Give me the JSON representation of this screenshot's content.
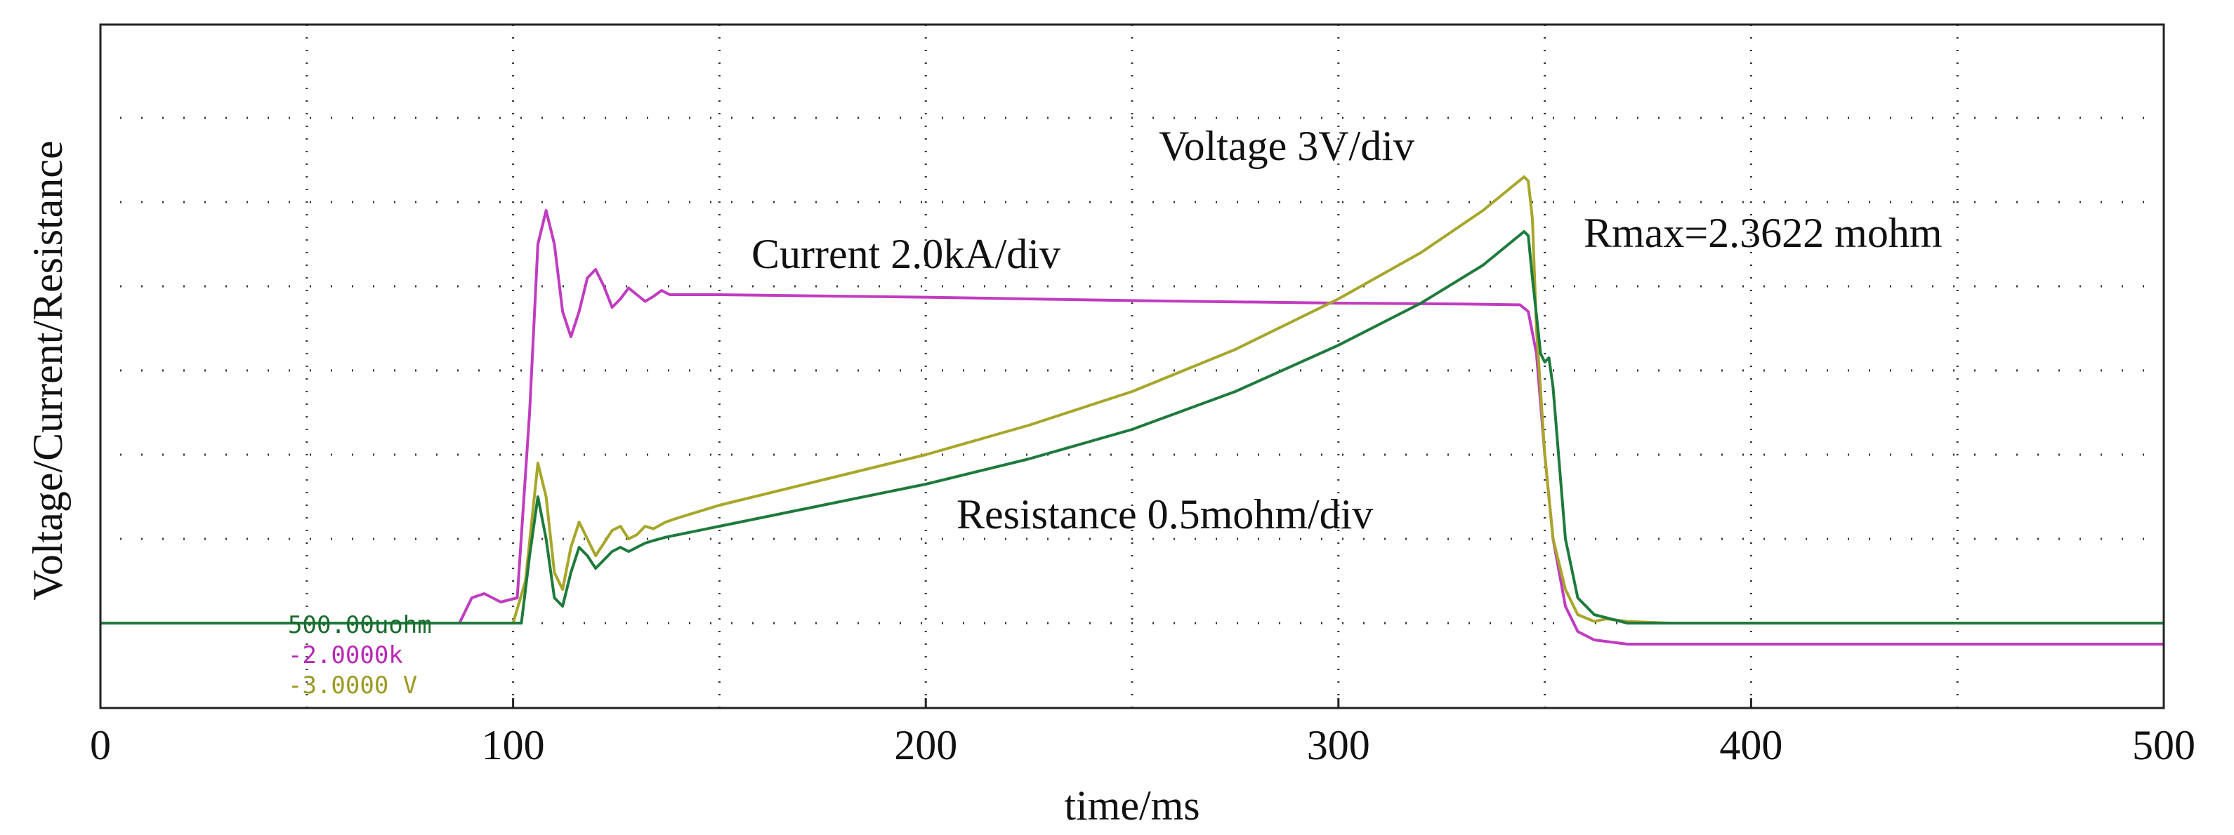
{
  "chart_data": {
    "type": "line",
    "title": "",
    "xlabel": "time/ms",
    "ylabel": "Voltage/Current/Resistance",
    "xlim": [
      0,
      500
    ],
    "ylim": [
      -1,
      7
    ],
    "x_ticks": [
      0,
      100,
      200,
      300,
      400,
      500
    ],
    "x_tick_labels": [
      "0",
      "100",
      "200",
      "300",
      "400",
      "500"
    ],
    "grid": "dotted",
    "annotations": {
      "voltage": "Voltage 3V/div",
      "current": "Current 2.0kA/div",
      "resistance": "Resistance 0.5mohm/div",
      "rmax": "Rmax=2.3622 mohm"
    },
    "channel_labels": [
      {
        "text": "500.00uohm",
        "color": "#1a6b2e"
      },
      {
        "text": "-2.0000k",
        "color": "#b829b8"
      },
      {
        "text": "-3.0000 V",
        "color": "#9c9a22"
      }
    ],
    "series": [
      {
        "name": "Current",
        "unit": "div",
        "color": "#c03cc0",
        "x": [
          0,
          87,
          90,
          93,
          97,
          101,
          104,
          106,
          108,
          110,
          112,
          114,
          116,
          118,
          120,
          122,
          124,
          126,
          128,
          130,
          132,
          134,
          136,
          138,
          140,
          145,
          150,
          200,
          250,
          300,
          330,
          344,
          346,
          348,
          350,
          352,
          355,
          358,
          362,
          370,
          400,
          450,
          500
        ],
        "values": [
          0,
          0,
          0.3,
          0.35,
          0.25,
          0.3,
          2.5,
          4.5,
          4.9,
          4.5,
          3.7,
          3.4,
          3.7,
          4.1,
          4.2,
          4.0,
          3.75,
          3.85,
          3.98,
          3.9,
          3.82,
          3.88,
          3.95,
          3.9,
          3.9,
          3.9,
          3.9,
          3.87,
          3.83,
          3.8,
          3.79,
          3.78,
          3.7,
          3.2,
          2.0,
          1.0,
          0.2,
          -0.1,
          -0.2,
          -0.25,
          -0.25,
          -0.25,
          -0.25
        ]
      },
      {
        "name": "Voltage",
        "unit": "div",
        "color": "#a8a62a",
        "x": [
          0,
          100,
          103,
          106,
          108,
          110,
          112,
          114,
          116,
          118,
          120,
          122,
          124,
          126,
          128,
          130,
          132,
          134,
          137,
          140,
          150,
          175,
          200,
          225,
          250,
          275,
          300,
          320,
          335,
          345,
          346,
          347,
          348,
          350,
          352,
          355,
          358,
          362,
          365,
          370,
          380,
          400,
          450,
          500
        ],
        "values": [
          0,
          0,
          0.5,
          1.9,
          1.5,
          0.6,
          0.4,
          0.9,
          1.2,
          1.0,
          0.8,
          0.95,
          1.1,
          1.15,
          1.0,
          1.05,
          1.15,
          1.12,
          1.2,
          1.25,
          1.4,
          1.7,
          2.0,
          2.35,
          2.75,
          3.25,
          3.85,
          4.4,
          4.9,
          5.3,
          5.25,
          4.8,
          3.5,
          2.0,
          1.0,
          0.4,
          0.1,
          0.02,
          0.05,
          0.02,
          0,
          0,
          0,
          0
        ]
      },
      {
        "name": "Resistance",
        "unit": "div",
        "color": "#1e7a3c",
        "x": [
          0,
          102,
          104,
          106,
          108,
          110,
          112,
          114,
          116,
          118,
          120,
          122,
          124,
          126,
          128,
          130,
          132,
          134,
          137,
          140,
          150,
          175,
          200,
          225,
          250,
          275,
          300,
          320,
          335,
          345,
          346,
          347,
          349,
          350,
          351,
          352,
          355,
          358,
          362,
          370,
          400,
          450,
          500
        ],
        "values": [
          0,
          0,
          0.8,
          1.5,
          1.0,
          0.3,
          0.2,
          0.6,
          0.9,
          0.8,
          0.65,
          0.75,
          0.85,
          0.9,
          0.85,
          0.9,
          0.95,
          0.98,
          1.02,
          1.05,
          1.15,
          1.4,
          1.65,
          1.95,
          2.3,
          2.75,
          3.3,
          3.8,
          4.25,
          4.65,
          4.6,
          4.1,
          3.2,
          3.1,
          3.15,
          2.8,
          1.0,
          0.3,
          0.1,
          0,
          0,
          0,
          0
        ]
      }
    ]
  }
}
